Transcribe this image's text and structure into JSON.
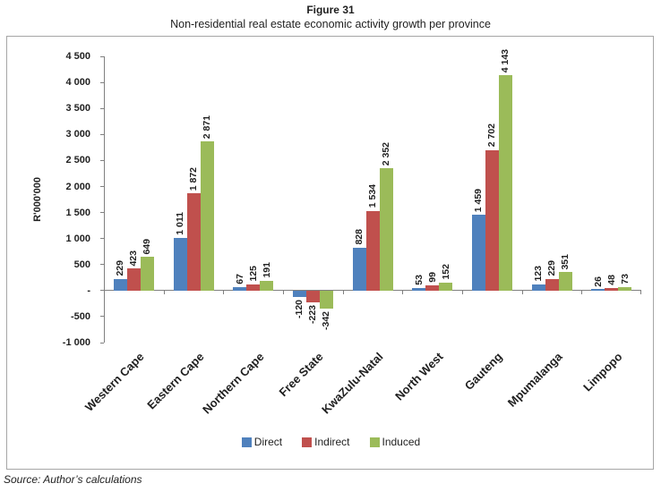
{
  "figure": {
    "title": "Figure 31",
    "subtitle": "Non-residential real estate economic activity growth per province",
    "source": "Source: Author’s calculations"
  },
  "chart_data": {
    "type": "bar",
    "title": "Non-residential real estate economic activity growth per province",
    "xlabel": "",
    "ylabel": "R'000'000",
    "ylim": [
      -1000,
      4500
    ],
    "grid": false,
    "legend_position": "bottom",
    "categories": [
      "Western Cape",
      "Eastern Cape",
      "Northern Cape",
      "Free State",
      "KwaZulu-Natal",
      "North West",
      "Gauteng",
      "Mpumalanga",
      "Limpopo"
    ],
    "series": [
      {
        "name": "Direct",
        "color": "#4F81BD",
        "values": [
          229,
          1011,
          67,
          -120,
          828,
          53,
          1459,
          123,
          26
        ],
        "labels": [
          "229",
          "1 011",
          "67",
          "-120",
          "828",
          "53",
          "1 459",
          "123",
          "26"
        ]
      },
      {
        "name": "Indirect",
        "color": "#C0504D",
        "values": [
          423,
          1872,
          125,
          -223,
          1534,
          99,
          2702,
          229,
          48
        ],
        "labels": [
          "423",
          "1 872",
          "125",
          "-223",
          "1 534",
          "99",
          "2 702",
          "229",
          "48"
        ]
      },
      {
        "name": "Induced",
        "color": "#9BBB59",
        "values": [
          649,
          2871,
          191,
          -342,
          2352,
          152,
          4143,
          351,
          73
        ],
        "labels": [
          "649",
          "2 871",
          "191",
          "-342",
          "2 352",
          "152",
          "4 143",
          "351",
          "73"
        ]
      }
    ],
    "yticks": {
      "values": [
        4500,
        4000,
        3500,
        3000,
        2500,
        2000,
        1500,
        1000,
        500,
        0,
        -500,
        -1000
      ],
      "labels": [
        "4 500",
        "4 000",
        "3 500",
        "3 000",
        "2 500",
        "2 000",
        "1 500",
        "1 000",
        "500",
        "-",
        "-500",
        "-1 000"
      ]
    }
  }
}
